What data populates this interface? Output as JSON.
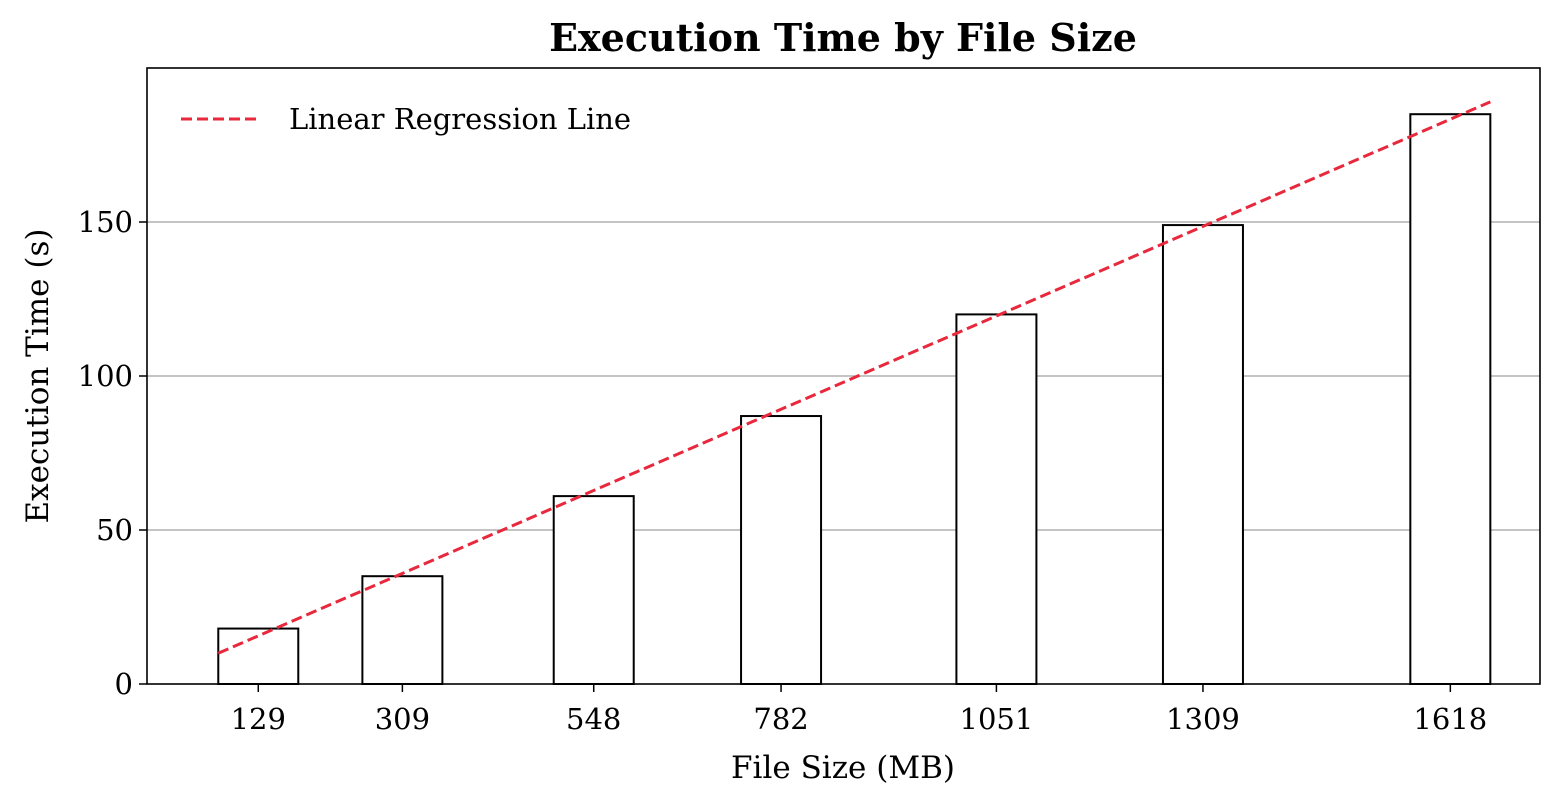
{
  "chart_data": {
    "type": "bar",
    "title": "Execution Time by File Size",
    "xlabel": "File Size (MB)",
    "ylabel": "Execution Time (s)",
    "x": [
      129,
      309,
      548,
      782,
      1051,
      1309,
      1618
    ],
    "categories": [
      "129",
      "309",
      "548",
      "782",
      "1051",
      "1309",
      "1618"
    ],
    "values": [
      18,
      35,
      61,
      87,
      120,
      149,
      185
    ],
    "yticks": [
      0,
      50,
      100,
      150
    ],
    "ylim": [
      0,
      200
    ],
    "xlim": [
      -10,
      1730
    ],
    "grid": "y",
    "legend_placement": "top-left",
    "bar_fill": "#ffffff",
    "bar_edge": "#000000",
    "regression": {
      "name": "Linear Regression Line",
      "color": "#e8283c",
      "style": "dashed",
      "x_start": 79,
      "y_start": 10,
      "x_end": 1668,
      "y_end": 189
    }
  }
}
